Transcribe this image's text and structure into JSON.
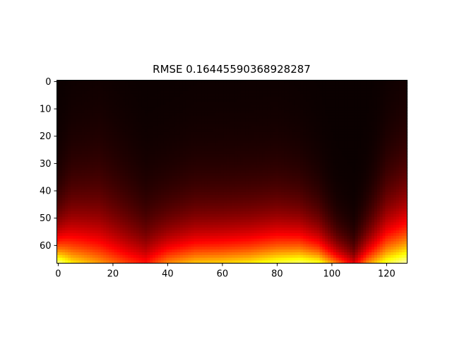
{
  "chart_data": {
    "type": "heatmap",
    "title": "RMSE 0.16445590368928287",
    "xlabel": "",
    "ylabel": "",
    "colormap": "hot",
    "value_range": [
      0,
      1
    ],
    "xlim": [
      -0.5,
      127.5
    ],
    "ylim": [
      66.5,
      -0.5
    ],
    "ncols": 128,
    "nrows": 67,
    "x_ticks": [
      0,
      20,
      40,
      60,
      80,
      100,
      120
    ],
    "y_ticks": [
      0,
      10,
      20,
      30,
      40,
      50,
      60
    ],
    "grid": false,
    "description_profile": {
      "columns": [
        0,
        5,
        15,
        25,
        32,
        40,
        50,
        60,
        70,
        80,
        88,
        95,
        102,
        108,
        113,
        120,
        127
      ],
      "bottom_row_value": [
        0.86,
        0.7,
        0.58,
        0.45,
        0.38,
        0.55,
        0.64,
        0.66,
        0.7,
        0.78,
        0.82,
        0.76,
        0.5,
        0.3,
        0.55,
        0.78,
        0.9
      ],
      "decay_rows": [
        10,
        14,
        16,
        14,
        12,
        12,
        13,
        13,
        13,
        13,
        12,
        10,
        7,
        6,
        9,
        14,
        16
      ]
    }
  }
}
